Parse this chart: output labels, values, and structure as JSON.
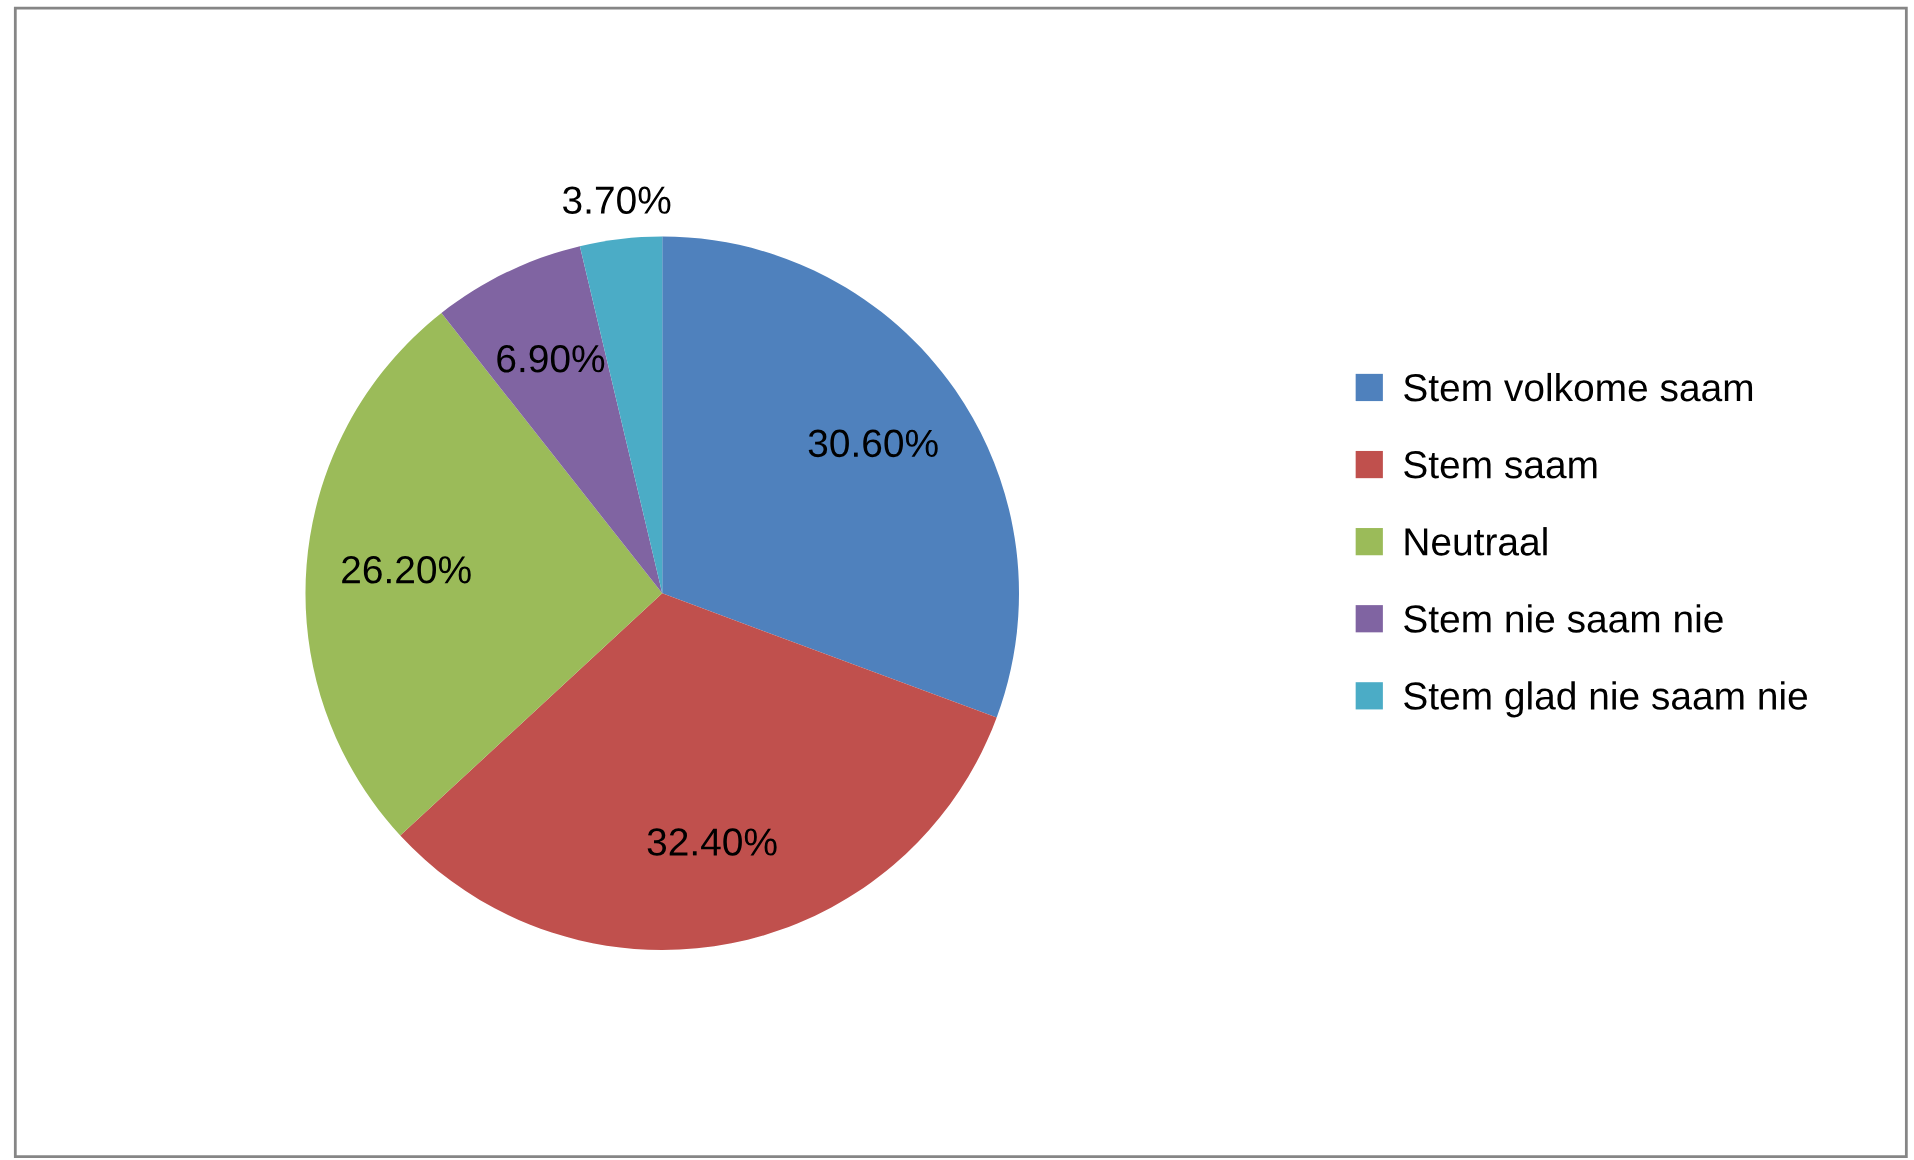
{
  "chart_data": {
    "type": "pie",
    "categories": [
      "Stem volkome saam",
      "Stem saam",
      "Neutraal",
      "Stem nie saam nie",
      "Stem glad nie saam nie"
    ],
    "values": [
      30.6,
      32.4,
      26.2,
      6.9,
      3.7
    ],
    "value_labels": [
      "30.60%",
      "32.40%",
      "26.20%",
      "6.90%",
      "3.70%"
    ],
    "colors": [
      "#4f81bd",
      "#c0504d",
      "#9bbb59",
      "#8064a2",
      "#4bacc6"
    ],
    "legend": "right"
  }
}
